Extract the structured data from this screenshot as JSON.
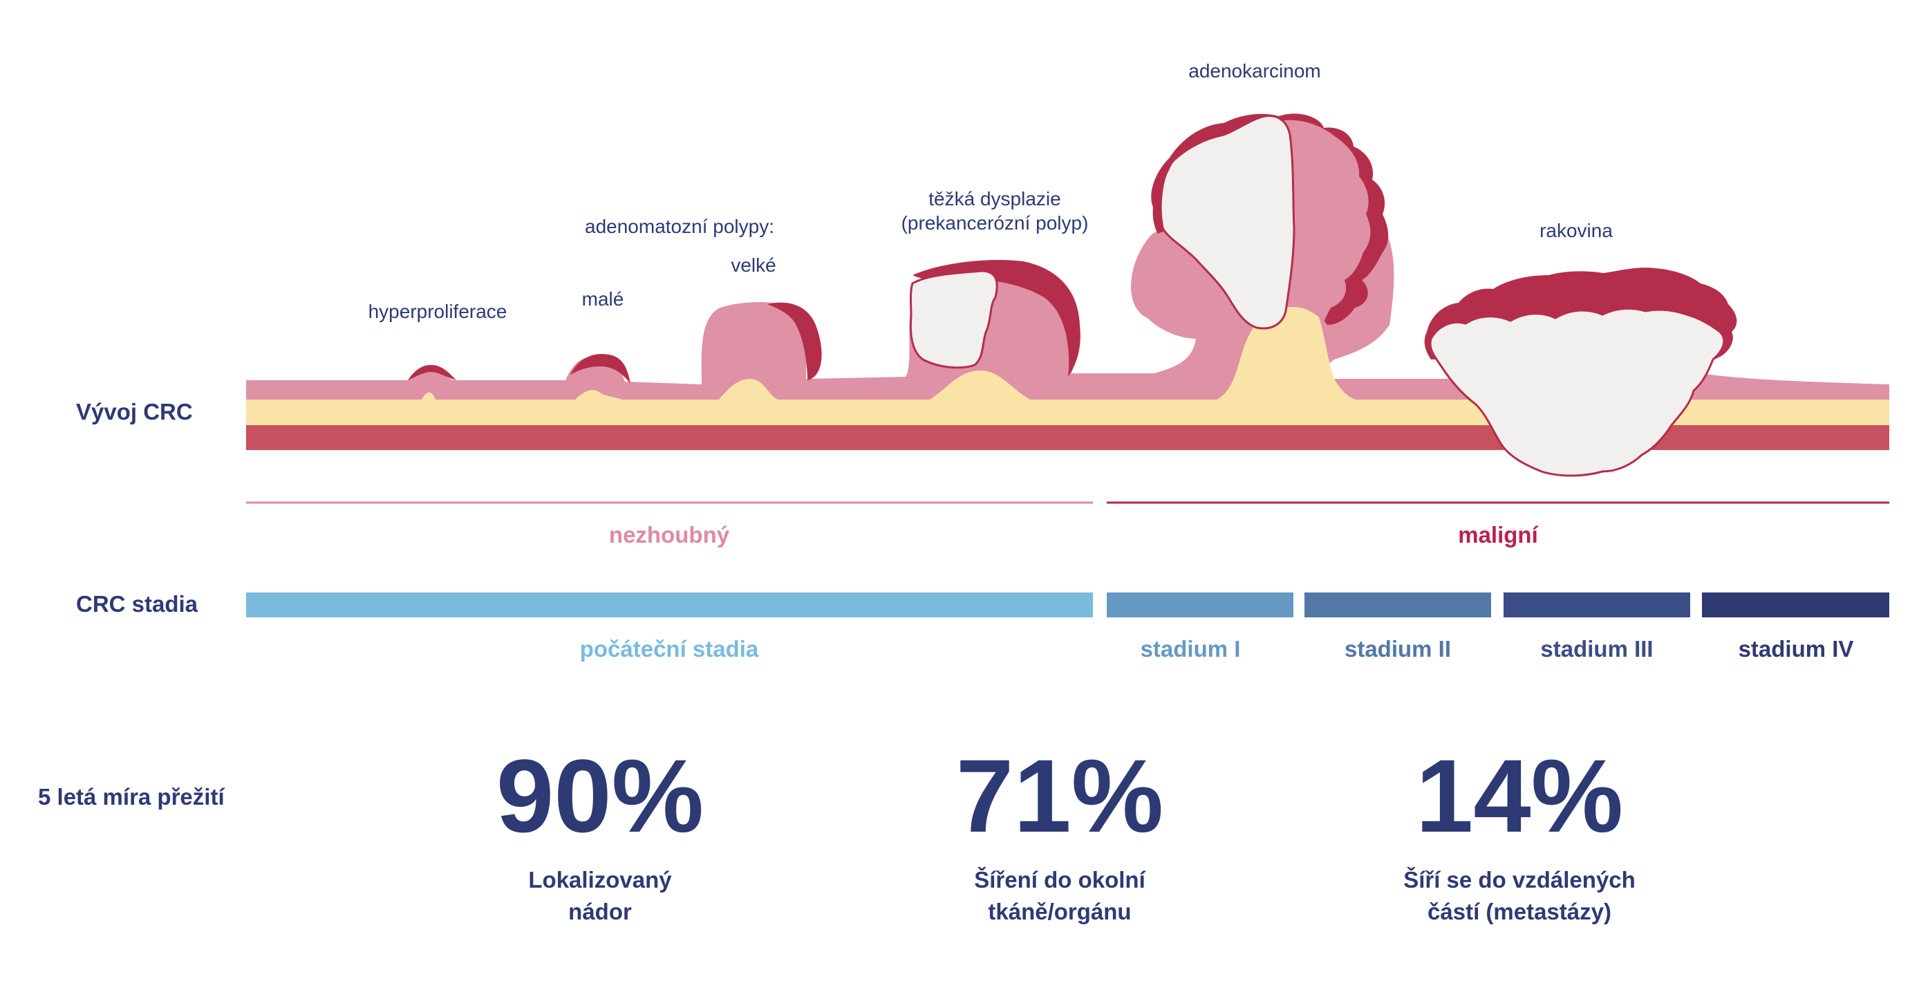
{
  "colors": {
    "navy": "#2d3a73",
    "mucosa": "#df91a5",
    "submucosa": "#fae3a7",
    "muscle": "#c8515f",
    "tumor": "#b42e4b",
    "necrosis": "#f2f0ef",
    "benign": "#e08aa0",
    "malignant": "#b8224a",
    "early": "#7abadd",
    "stage1": "#6699c2",
    "stage2": "#5278a8",
    "stage3": "#3b4d85",
    "stage4": "#2f3a72"
  },
  "rows": {
    "development": "Vývoj CRC",
    "stages": "CRC stadia",
    "survival": "5 letá míra přežití"
  },
  "lesions": {
    "hyperproliferation": "hyperproliferace",
    "adenomatous_title": "adenomatozní polypy:",
    "small": "malé",
    "large": "velké",
    "dysplasia_line1": "těžká dysplazie",
    "dysplasia_line2": "(prekancerózní polyp)",
    "adenocarcinoma": "adenokarcinom",
    "cancer": "rakovina"
  },
  "categories": {
    "benign": "nezhoubný",
    "malignant": "maligní"
  },
  "stages": {
    "early": "počáteční stadia",
    "stage1": "stadium I",
    "stage2": "stadium II",
    "stage3": "stadium III",
    "stage4": "stadium IV"
  },
  "survival": [
    {
      "value": "90%",
      "line1": "Lokalizovaný",
      "line2": "nádor"
    },
    {
      "value": "71%",
      "line1": "Šíření do okolní",
      "line2": "tkáně/orgánu"
    },
    {
      "value": "14%",
      "line1": "Šíří se do vzdálených",
      "line2": "částí (metastázy)"
    }
  ]
}
